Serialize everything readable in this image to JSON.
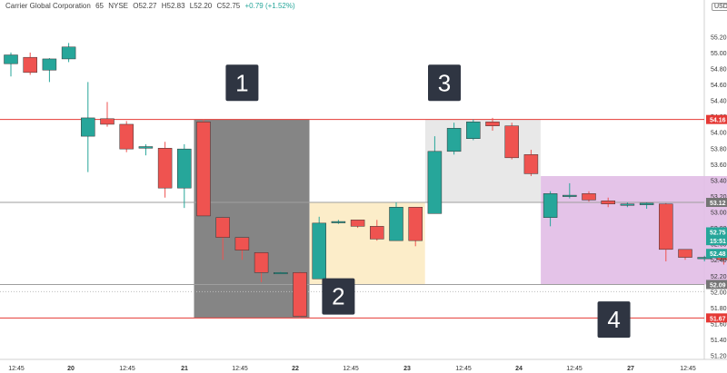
{
  "header": {
    "symbol": "Carrier Global Corporation",
    "interval": "65",
    "exchange": "NYSE",
    "open": "O52.27",
    "high": "H52.83",
    "low": "L52.20",
    "close": "C52.75",
    "change": "+0.79 (+1.52%)"
  },
  "currency": "USD",
  "chart_data": {
    "type": "candlestick",
    "ylim": [
      51.15,
      55.5
    ],
    "y_ticks": [
      "55.20",
      "55.00",
      "54.80",
      "54.60",
      "54.40",
      "54.20",
      "54.00",
      "53.80",
      "53.60",
      "53.40",
      "53.20",
      "53.00",
      "52.80",
      "52.60",
      "52.40",
      "52.20",
      "52.00",
      "51.80",
      "51.60",
      "51.40",
      "51.20"
    ],
    "x_ticks": [
      "12:45",
      "20",
      "12:45",
      "21",
      "12:45",
      "22",
      "12:45",
      "23",
      "12:45",
      "24",
      "12:45",
      "27",
      "12:45"
    ],
    "candles": [
      {
        "o": 54.86,
        "h": 55.0,
        "l": 54.7,
        "c": 54.97
      },
      {
        "o": 54.94,
        "h": 55.0,
        "l": 54.72,
        "c": 54.75
      },
      {
        "o": 54.78,
        "h": 54.93,
        "l": 54.63,
        "c": 54.92
      },
      {
        "o": 54.92,
        "h": 55.12,
        "l": 54.88,
        "c": 55.07
      },
      {
        "o": 53.95,
        "h": 54.63,
        "l": 53.5,
        "c": 54.18
      },
      {
        "o": 54.17,
        "h": 54.38,
        "l": 54.07,
        "c": 54.1
      },
      {
        "o": 54.1,
        "h": 54.14,
        "l": 53.75,
        "c": 53.79
      },
      {
        "o": 53.8,
        "h": 53.85,
        "l": 53.71,
        "c": 53.82
      },
      {
        "o": 53.8,
        "h": 53.88,
        "l": 53.18,
        "c": 53.3
      },
      {
        "o": 53.3,
        "h": 53.85,
        "l": 53.05,
        "c": 53.79
      },
      {
        "o": 54.13,
        "h": 54.16,
        "l": 52.95,
        "c": 52.95
      },
      {
        "o": 52.93,
        "h": 52.94,
        "l": 52.4,
        "c": 52.68
      },
      {
        "o": 52.68,
        "h": 52.68,
        "l": 52.4,
        "c": 52.52
      },
      {
        "o": 52.49,
        "h": 52.49,
        "l": 52.12,
        "c": 52.24
      },
      {
        "o": 52.24,
        "h": 52.25,
        "l": 52.23,
        "c": 52.24
      },
      {
        "o": 52.24,
        "h": 52.25,
        "l": 51.67,
        "c": 51.69
      },
      {
        "o": 52.16,
        "h": 52.94,
        "l": 52.16,
        "c": 52.86
      },
      {
        "o": 52.88,
        "h": 52.9,
        "l": 52.85,
        "c": 52.88
      },
      {
        "o": 52.9,
        "h": 52.9,
        "l": 52.8,
        "c": 52.82
      },
      {
        "o": 52.82,
        "h": 52.9,
        "l": 52.64,
        "c": 52.66
      },
      {
        "o": 52.64,
        "h": 53.12,
        "l": 52.64,
        "c": 53.06
      },
      {
        "o": 53.06,
        "h": 53.06,
        "l": 52.57,
        "c": 52.64
      },
      {
        "o": 52.98,
        "h": 53.95,
        "l": 52.98,
        "c": 53.76
      },
      {
        "o": 53.76,
        "h": 54.12,
        "l": 53.72,
        "c": 54.05
      },
      {
        "o": 53.92,
        "h": 54.16,
        "l": 53.9,
        "c": 54.13
      },
      {
        "o": 54.13,
        "h": 54.18,
        "l": 54.02,
        "c": 54.08
      },
      {
        "o": 54.08,
        "h": 54.12,
        "l": 53.66,
        "c": 53.68
      },
      {
        "o": 53.72,
        "h": 53.78,
        "l": 53.45,
        "c": 53.48
      },
      {
        "o": 52.93,
        "h": 53.26,
        "l": 52.82,
        "c": 53.23
      },
      {
        "o": 53.21,
        "h": 53.36,
        "l": 53.17,
        "c": 53.21
      },
      {
        "o": 53.23,
        "h": 53.26,
        "l": 53.13,
        "c": 53.15
      },
      {
        "o": 53.14,
        "h": 53.18,
        "l": 53.06,
        "c": 53.1
      },
      {
        "o": 53.1,
        "h": 53.12,
        "l": 53.06,
        "c": 53.1
      },
      {
        "o": 53.09,
        "h": 53.12,
        "l": 53.04,
        "c": 53.11
      },
      {
        "o": 53.1,
        "h": 53.11,
        "l": 52.38,
        "c": 52.53
      },
      {
        "o": 52.53,
        "h": 52.53,
        "l": 52.4,
        "c": 52.43
      },
      {
        "o": 52.43,
        "h": 52.45,
        "l": 52.38,
        "c": 52.43
      },
      {
        "o": 52.43,
        "h": 52.43,
        "l": 52.34,
        "c": 52.4
      },
      {
        "o": 52.4,
        "h": 52.48,
        "l": 52.4,
        "c": 52.48
      }
    ],
    "horizontal_lines": [
      {
        "price": 54.16,
        "color": "#e53935",
        "label": "54.16"
      },
      {
        "price": 51.67,
        "color": "#e53935",
        "label": "51.67"
      },
      {
        "price": 53.12,
        "color": "#9e9e9e",
        "label": "53.12"
      },
      {
        "price": 52.09,
        "color": "#9e9e9e",
        "label": "52.09"
      }
    ],
    "dotted_line": {
      "price": 52.0
    },
    "zones": [
      {
        "label": "1",
        "from": 10,
        "to": 15,
        "top": 54.16,
        "bottom": 51.67,
        "color": "#787878"
      },
      {
        "label": "2",
        "from": 16,
        "to": 21,
        "top": 53.12,
        "bottom": 52.09,
        "color": "#fcebc3"
      },
      {
        "label": "3",
        "from": 22,
        "to": 27,
        "top": 54.16,
        "bottom": 53.12,
        "color": "#e6e6e6"
      },
      {
        "label": "4",
        "from": 28,
        "to": 38,
        "top": 53.45,
        "bottom": 52.09,
        "color": "#e1bde6"
      }
    ],
    "price_tags": [
      {
        "price": 52.75,
        "label": "52.75",
        "color": "#26a69a"
      },
      {
        "price": 52.64,
        "label": "15:51",
        "color": "#26a69a"
      },
      {
        "price": 52.48,
        "label": "52.48",
        "color": "#26a69a"
      }
    ],
    "colors": {
      "up": "#26a69a",
      "down": "#ef5350",
      "border": "#333333"
    }
  }
}
